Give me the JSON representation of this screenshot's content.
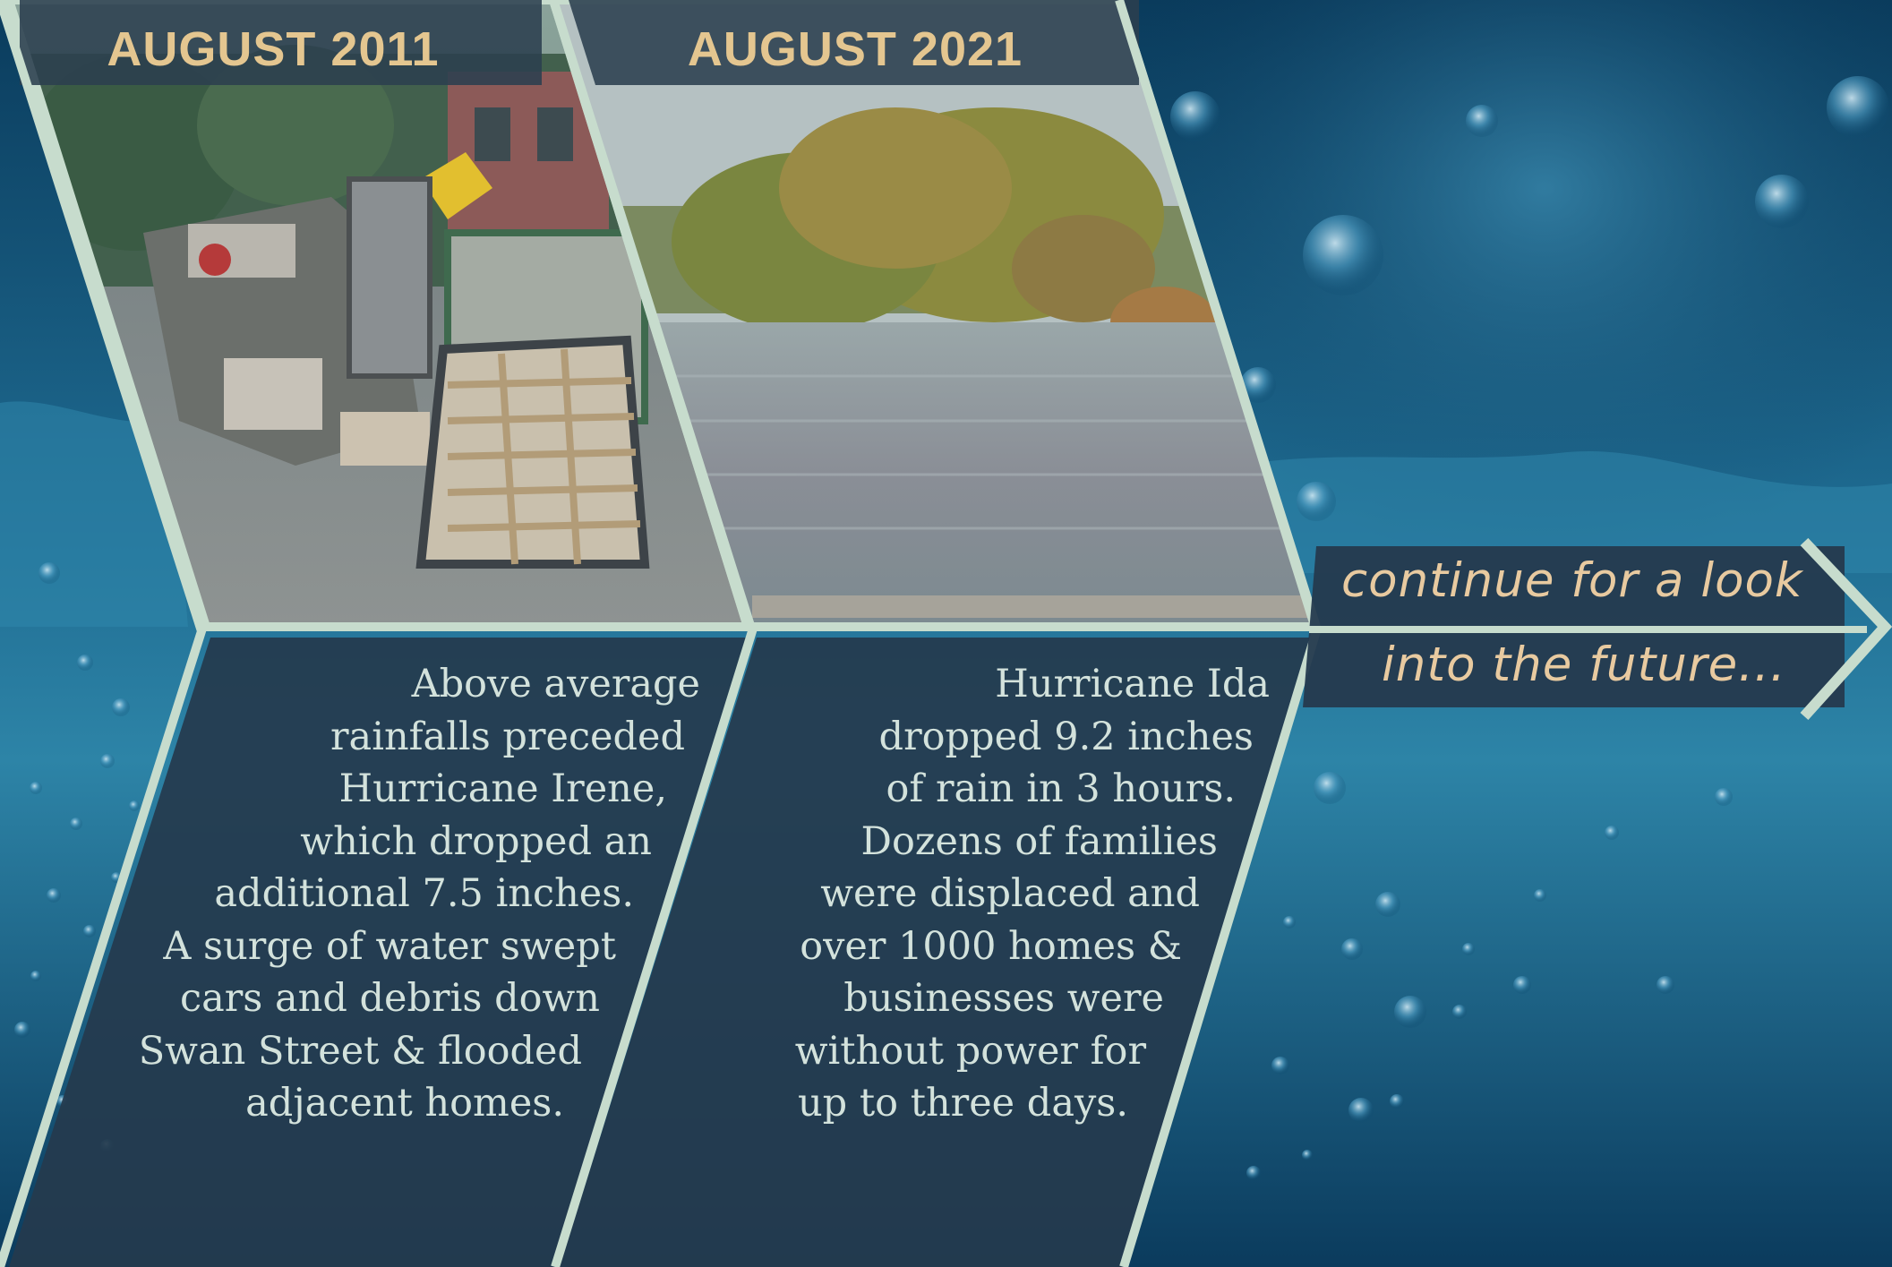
{
  "panel_2011": {
    "title": "AUGUST 2011",
    "photo": "flood debris photo: piled furniture, mattresses and box springs on a sidewalk",
    "lines": [
      "Above average",
      "rainfalls preceded",
      "Hurricane Irene,",
      "which dropped an",
      "additional 7.5 inches.",
      "A surge of water swept",
      "cars and debris down",
      "Swan Street & flooded",
      "adjacent homes."
    ]
  },
  "panel_2021": {
    "title": "AUGUST 2021",
    "photo": "flooded road with trees rising out of the water",
    "lines": [
      "Hurricane Ida",
      "dropped 9.2 inches",
      "of rain in 3 hours.",
      "Dozens of families",
      "were displaced and",
      "over 1000 homes &",
      "businesses were",
      "without power for",
      "up to three days."
    ]
  },
  "cta": {
    "line1": "continue for a look",
    "line2": "into the future..."
  },
  "colors": {
    "panel": "#253a4e",
    "chevron_border": "#c7dccd",
    "title_gold": "#e4c690",
    "body_text": "#d3e2dc",
    "water": "#0e4a6d"
  }
}
